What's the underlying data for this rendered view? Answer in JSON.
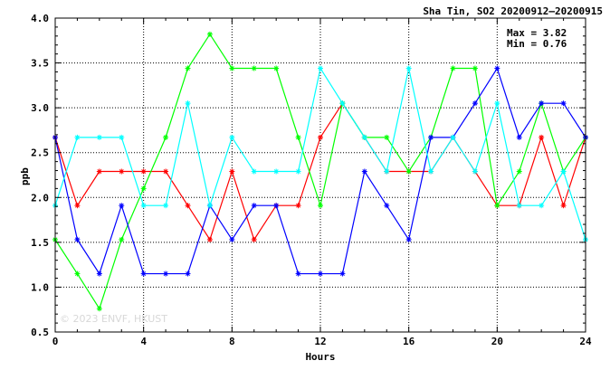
{
  "chart_data": {
    "type": "line",
    "title": "Sha Tin, SO2 20200912–20200915",
    "xlabel": "Hours",
    "ylabel": "ppb",
    "xlim": [
      0,
      24
    ],
    "ylim": [
      0.5,
      4.0
    ],
    "x_ticks": [
      "0",
      "4",
      "8",
      "12",
      "16",
      "20",
      "24"
    ],
    "y_ticks": [
      "0.5",
      "1.0",
      "1.5",
      "2.0",
      "2.5",
      "3.0",
      "3.5",
      "4.0"
    ],
    "grid": true,
    "annotations": {
      "max": "Max = 3.82",
      "min": "Min = 0.76"
    },
    "watermark": "© 2023 ENVF, HKUST",
    "x": [
      0,
      1,
      2,
      3,
      4,
      5,
      6,
      7,
      8,
      9,
      10,
      11,
      12,
      13,
      14,
      15,
      16,
      17,
      18,
      19,
      20,
      21,
      22,
      23,
      24
    ],
    "series": [
      {
        "color": "#ff0000",
        "values": [
          2.67,
          1.91,
          2.29,
          2.29,
          2.29,
          2.29,
          1.91,
          1.53,
          2.29,
          1.53,
          1.91,
          1.91,
          2.67,
          3.05,
          2.67,
          2.29,
          2.29,
          2.29,
          2.67,
          2.29,
          1.91,
          1.91,
          2.67,
          1.91,
          2.67
        ]
      },
      {
        "color": "#00ff00",
        "values": [
          1.53,
          1.15,
          0.76,
          1.53,
          2.1,
          2.67,
          3.44,
          3.82,
          3.44,
          3.44,
          3.44,
          2.67,
          1.91,
          3.05,
          2.67,
          2.67,
          2.29,
          2.67,
          3.44,
          3.44,
          1.91,
          2.29,
          3.05,
          2.29,
          2.67
        ]
      },
      {
        "color": "#0000ff",
        "values": [
          2.67,
          1.53,
          1.15,
          1.91,
          1.15,
          1.15,
          1.15,
          1.91,
          1.53,
          1.91,
          1.91,
          1.15,
          1.15,
          1.15,
          2.29,
          1.91,
          1.53,
          2.67,
          2.67,
          3.05,
          3.44,
          2.67,
          3.05,
          3.05,
          2.67
        ]
      },
      {
        "color": "#00ffff",
        "values": [
          1.91,
          2.67,
          2.67,
          2.67,
          1.91,
          1.91,
          3.05,
          1.91,
          2.67,
          2.29,
          2.29,
          2.29,
          3.44,
          3.05,
          2.67,
          2.29,
          3.44,
          2.29,
          2.67,
          2.29,
          3.05,
          1.91,
          1.91,
          2.29,
          1.53
        ]
      }
    ]
  }
}
